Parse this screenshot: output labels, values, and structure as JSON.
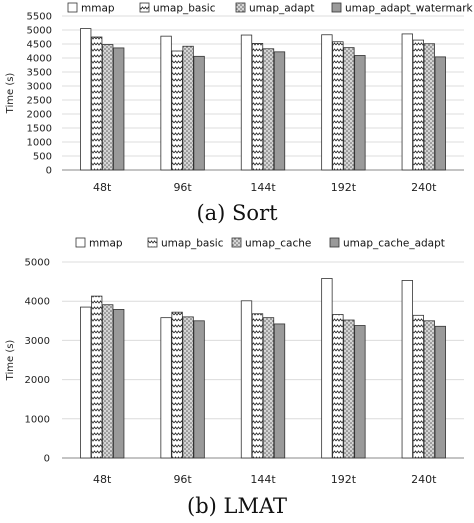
{
  "chart_data": [
    {
      "type": "bar",
      "title": "(a) Sort",
      "ylabel": "Time (s)",
      "xlabel": "",
      "ylim": [
        0,
        5500
      ],
      "ytick_step": 500,
      "yticks": [
        "0",
        "500",
        "1000",
        "1500",
        "2000",
        "2500",
        "3000",
        "3500",
        "4000",
        "4500",
        "5000",
        "5500"
      ],
      "categories": [
        "48t",
        "96t",
        "144t",
        "192t",
        "240t"
      ],
      "legend_position": "top",
      "series": [
        {
          "name": "mmap",
          "pattern": "blank",
          "values": [
            5050,
            4780,
            4820,
            4830,
            4860
          ]
        },
        {
          "name": "umap_basic",
          "pattern": "zigzag",
          "values": [
            4750,
            4250,
            4520,
            4580,
            4640
          ]
        },
        {
          "name": "umap_adapt",
          "pattern": "dots",
          "values": [
            4480,
            4420,
            4330,
            4370,
            4510
          ]
        },
        {
          "name": "umap_adapt_watermark",
          "pattern": "gray",
          "values": [
            4360,
            4060,
            4220,
            4090,
            4040
          ]
        }
      ]
    },
    {
      "type": "bar",
      "title": "(b) LMAT",
      "ylabel": "Time (s)",
      "xlabel": "",
      "ylim": [
        0,
        5000
      ],
      "ytick_step": 1000,
      "yticks": [
        "0",
        "1000",
        "2000",
        "3000",
        "4000",
        "5000"
      ],
      "categories": [
        "48t",
        "96t",
        "144t",
        "192t",
        "240t"
      ],
      "legend_position": "top",
      "series": [
        {
          "name": "mmap",
          "pattern": "blank",
          "values": [
            3850,
            3580,
            4010,
            4580,
            4530
          ]
        },
        {
          "name": "umap_basic",
          "pattern": "zigzag",
          "values": [
            4130,
            3720,
            3680,
            3660,
            3640
          ]
        },
        {
          "name": "umap_cache",
          "pattern": "dots",
          "values": [
            3910,
            3600,
            3580,
            3520,
            3500
          ]
        },
        {
          "name": "umap_cache_adapt",
          "pattern": "gray",
          "values": [
            3790,
            3500,
            3420,
            3380,
            3360
          ]
        }
      ]
    }
  ]
}
